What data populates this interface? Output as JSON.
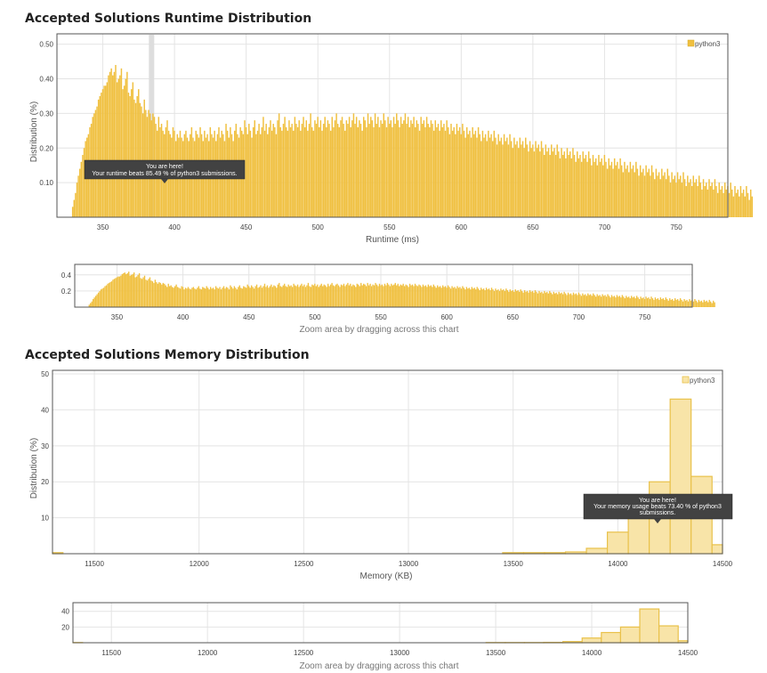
{
  "runtime": {
    "title": "Accepted Solutions Runtime Distribution",
    "zoom_caption": "Zoom area by dragging across this chart",
    "tooltip": {
      "line1": "You are here!",
      "line2": "Your runtime beats 85.49 % of python3 submissions."
    }
  },
  "memory": {
    "title": "Accepted Solutions Memory Distribution",
    "zoom_caption": "Zoom area by dragging across this chart",
    "tooltip": {
      "line1": "You are here!",
      "line2": "Your memory usage beats 73.40 % of python3",
      "line3": "submissions."
    }
  },
  "colors": {
    "runtime_bar": "#f0c040",
    "memory_fill": "#f8e4a8",
    "memory_stroke": "#e9c14a",
    "highlight": "#dddddd",
    "tooltip_bg": "#424242"
  },
  "chart_data": [
    {
      "type": "bar",
      "title": "Accepted Solutions Runtime Distribution",
      "xlabel": "Runtime (ms)",
      "ylabel": "Distribution (%)",
      "xlim": [
        318,
        786
      ],
      "ylim": [
        0,
        0.53
      ],
      "xticks": [
        350,
        400,
        450,
        500,
        550,
        600,
        650,
        700,
        750
      ],
      "yticks": [
        0.1,
        0.2,
        0.3,
        0.4,
        0.5
      ],
      "ytick_labels": [
        "0.10",
        "0.20",
        "0.30",
        "0.40",
        "0.50"
      ],
      "legend": "python3",
      "legend_position": "top-right",
      "grid": true,
      "highlight_x": 384,
      "series": [
        {
          "name": "python3",
          "x_start": 329,
          "x_step": 1,
          "values": [
            0.03,
            0.05,
            0.07,
            0.1,
            0.12,
            0.14,
            0.16,
            0.18,
            0.2,
            0.22,
            0.23,
            0.24,
            0.26,
            0.27,
            0.29,
            0.3,
            0.31,
            0.32,
            0.34,
            0.35,
            0.36,
            0.37,
            0.38,
            0.38,
            0.39,
            0.41,
            0.42,
            0.43,
            0.41,
            0.42,
            0.44,
            0.39,
            0.4,
            0.41,
            0.43,
            0.37,
            0.38,
            0.4,
            0.42,
            0.36,
            0.35,
            0.37,
            0.39,
            0.34,
            0.33,
            0.35,
            0.37,
            0.33,
            0.32,
            0.3,
            0.34,
            0.31,
            0.29,
            0.31,
            0.3,
            0.28,
            0.3,
            0.29,
            0.27,
            0.25,
            0.29,
            0.26,
            0.27,
            0.25,
            0.24,
            0.26,
            0.28,
            0.25,
            0.24,
            0.23,
            0.26,
            0.25,
            0.22,
            0.24,
            0.23,
            0.25,
            0.23,
            0.22,
            0.24,
            0.25,
            0.23,
            0.22,
            0.24,
            0.26,
            0.23,
            0.22,
            0.25,
            0.24,
            0.23,
            0.26,
            0.24,
            0.22,
            0.25,
            0.23,
            0.24,
            0.22,
            0.26,
            0.24,
            0.23,
            0.25,
            0.22,
            0.24,
            0.26,
            0.23,
            0.25,
            0.24,
            0.22,
            0.27,
            0.25,
            0.23,
            0.26,
            0.24,
            0.22,
            0.25,
            0.27,
            0.24,
            0.23,
            0.26,
            0.25,
            0.24,
            0.28,
            0.26,
            0.24,
            0.27,
            0.25,
            0.23,
            0.26,
            0.28,
            0.24,
            0.25,
            0.27,
            0.24,
            0.26,
            0.29,
            0.25,
            0.27,
            0.24,
            0.26,
            0.28,
            0.25,
            0.27,
            0.26,
            0.24,
            0.28,
            0.3,
            0.26,
            0.25,
            0.27,
            0.29,
            0.26,
            0.25,
            0.28,
            0.26,
            0.27,
            0.25,
            0.29,
            0.27,
            0.26,
            0.28,
            0.25,
            0.27,
            0.29,
            0.26,
            0.28,
            0.25,
            0.27,
            0.3,
            0.26,
            0.25,
            0.28,
            0.27,
            0.29,
            0.26,
            0.28,
            0.25,
            0.27,
            0.29,
            0.26,
            0.28,
            0.27,
            0.25,
            0.29,
            0.26,
            0.28,
            0.3,
            0.27,
            0.26,
            0.28,
            0.29,
            0.27,
            0.25,
            0.28,
            0.27,
            0.29,
            0.26,
            0.28,
            0.3,
            0.27,
            0.29,
            0.26,
            0.28,
            0.27,
            0.25,
            0.29,
            0.28,
            0.26,
            0.3,
            0.27,
            0.29,
            0.28,
            0.26,
            0.3,
            0.27,
            0.29,
            0.26,
            0.28,
            0.27,
            0.3,
            0.28,
            0.26,
            0.29,
            0.27,
            0.28,
            0.26,
            0.29,
            0.27,
            0.3,
            0.28,
            0.26,
            0.29,
            0.27,
            0.28,
            0.3,
            0.27,
            0.29,
            0.26,
            0.28,
            0.27,
            0.29,
            0.26,
            0.28,
            0.27,
            0.25,
            0.29,
            0.27,
            0.28,
            0.26,
            0.29,
            0.27,
            0.26,
            0.28,
            0.27,
            0.25,
            0.28,
            0.26,
            0.27,
            0.25,
            0.28,
            0.26,
            0.27,
            0.25,
            0.28,
            0.26,
            0.24,
            0.27,
            0.25,
            0.26,
            0.24,
            0.27,
            0.25,
            0.26,
            0.24,
            0.27,
            0.25,
            0.23,
            0.26,
            0.24,
            0.25,
            0.23,
            0.26,
            0.24,
            0.25,
            0.23,
            0.26,
            0.24,
            0.22,
            0.25,
            0.23,
            0.24,
            0.22,
            0.25,
            0.23,
            0.24,
            0.22,
            0.25,
            0.23,
            0.21,
            0.24,
            0.22,
            0.23,
            0.21,
            0.24,
            0.22,
            0.23,
            0.21,
            0.24,
            0.22,
            0.2,
            0.23,
            0.21,
            0.22,
            0.2,
            0.23,
            0.21,
            0.22,
            0.2,
            0.23,
            0.21,
            0.19,
            0.22,
            0.2,
            0.21,
            0.19,
            0.22,
            0.2,
            0.21,
            0.19,
            0.22,
            0.2,
            0.18,
            0.21,
            0.19,
            0.2,
            0.18,
            0.21,
            0.19,
            0.2,
            0.18,
            0.21,
            0.19,
            0.17,
            0.2,
            0.18,
            0.19,
            0.17,
            0.2,
            0.18,
            0.19,
            0.17,
            0.2,
            0.18,
            0.16,
            0.19,
            0.17,
            0.18,
            0.16,
            0.19,
            0.17,
            0.18,
            0.16,
            0.19,
            0.17,
            0.15,
            0.18,
            0.16,
            0.17,
            0.15,
            0.18,
            0.16,
            0.17,
            0.15,
            0.18,
            0.16,
            0.14,
            0.17,
            0.15,
            0.16,
            0.14,
            0.17,
            0.15,
            0.16,
            0.14,
            0.17,
            0.15,
            0.13,
            0.16,
            0.14,
            0.15,
            0.13,
            0.16,
            0.14,
            0.15,
            0.13,
            0.16,
            0.14,
            0.12,
            0.15,
            0.13,
            0.14,
            0.12,
            0.15,
            0.13,
            0.14,
            0.12,
            0.15,
            0.13,
            0.11,
            0.14,
            0.12,
            0.13,
            0.11,
            0.14,
            0.12,
            0.13,
            0.11,
            0.14,
            0.12,
            0.1,
            0.13,
            0.11,
            0.12,
            0.1,
            0.13,
            0.11,
            0.12,
            0.1,
            0.13,
            0.11,
            0.09,
            0.12,
            0.1,
            0.11,
            0.09,
            0.12,
            0.1,
            0.11,
            0.09,
            0.12,
            0.1,
            0.08,
            0.11,
            0.09,
            0.1,
            0.08,
            0.11,
            0.09,
            0.1,
            0.08,
            0.11,
            0.09,
            0.07,
            0.1,
            0.08,
            0.09,
            0.07,
            0.1,
            0.08,
            0.09,
            0.07,
            0.1,
            0.08,
            0.06,
            0.09,
            0.07,
            0.08,
            0.06,
            0.09,
            0.07,
            0.08,
            0.06,
            0.09,
            0.07,
            0.05,
            0.08,
            0.06
          ]
        }
      ]
    },
    {
      "type": "bar",
      "title": "Accepted Solutions Memory Distribution",
      "xlabel": "Memory (KB)",
      "ylabel": "Distribution (%)",
      "xlim": [
        11300,
        14500
      ],
      "ylim": [
        0,
        51
      ],
      "xticks": [
        11500,
        12000,
        12500,
        13000,
        13500,
        14000,
        14500
      ],
      "yticks": [
        10,
        20,
        30,
        40,
        50
      ],
      "legend": "python3",
      "legend_position": "top-right",
      "grid": true,
      "series": [
        {
          "name": "python3",
          "bins": [
            {
              "x0": 11300,
              "x1": 11350,
              "value": 0.3
            },
            {
              "x0": 13450,
              "x1": 13550,
              "value": 0.3
            },
            {
              "x0": 13550,
              "x1": 13650,
              "value": 0.3
            },
            {
              "x0": 13650,
              "x1": 13750,
              "value": 0.3
            },
            {
              "x0": 13750,
              "x1": 13850,
              "value": 0.5
            },
            {
              "x0": 13850,
              "x1": 13950,
              "value": 1.5
            },
            {
              "x0": 13950,
              "x1": 14050,
              "value": 6
            },
            {
              "x0": 14050,
              "x1": 14150,
              "value": 13
            },
            {
              "x0": 14150,
              "x1": 14250,
              "value": 20
            },
            {
              "x0": 14250,
              "x1": 14350,
              "value": 43
            },
            {
              "x0": 14350,
              "x1": 14450,
              "value": 21.5
            },
            {
              "x0": 14450,
              "x1": 14500,
              "value": 2.5
            }
          ]
        }
      ]
    }
  ]
}
